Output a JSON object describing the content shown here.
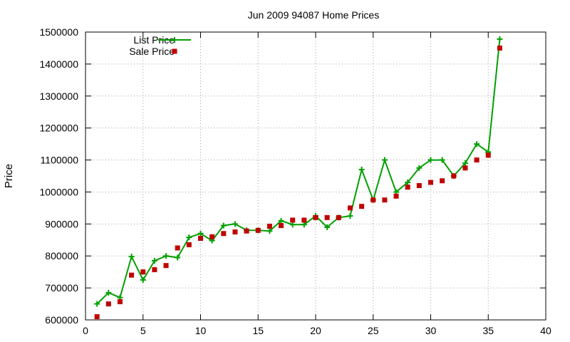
{
  "chart_data": {
    "type": "line",
    "title": "Jun 2009 94087 Home Prices",
    "xlabel": "",
    "ylabel": "Price",
    "xlim": [
      0,
      40
    ],
    "ylim": [
      600000,
      1500000
    ],
    "xticks": [
      0,
      5,
      10,
      15,
      20,
      25,
      30,
      35,
      40
    ],
    "yticks": [
      600000,
      700000,
      800000,
      900000,
      1000000,
      1100000,
      1200000,
      1300000,
      1400000,
      1500000
    ],
    "grid": true,
    "legend_position": "top-left",
    "series": [
      {
        "name": "List Price",
        "style": "line-plus",
        "color": "#00a000",
        "points": [
          [
            1,
            650000
          ],
          [
            2,
            685000
          ],
          [
            3,
            670000
          ],
          [
            4,
            798000
          ],
          [
            5,
            725000
          ],
          [
            6,
            785000
          ],
          [
            7,
            800000
          ],
          [
            8,
            795000
          ],
          [
            9,
            858000
          ],
          [
            10,
            870000
          ],
          [
            11,
            848000
          ],
          [
            12,
            895000
          ],
          [
            13,
            900000
          ],
          [
            14,
            880000
          ],
          [
            15,
            880000
          ],
          [
            16,
            878000
          ],
          [
            17,
            910000
          ],
          [
            18,
            898000
          ],
          [
            19,
            898000
          ],
          [
            20,
            925000
          ],
          [
            21,
            890000
          ],
          [
            22,
            920000
          ],
          [
            23,
            925000
          ],
          [
            24,
            1070000
          ],
          [
            25,
            975000
          ],
          [
            26,
            1100000
          ],
          [
            27,
            1000000
          ],
          [
            28,
            1030000
          ],
          [
            29,
            1075000
          ],
          [
            30,
            1100000
          ],
          [
            31,
            1100000
          ],
          [
            32,
            1050000
          ],
          [
            33,
            1090000
          ],
          [
            34,
            1150000
          ],
          [
            35,
            1125000
          ],
          [
            36,
            1478000
          ]
        ]
      },
      {
        "name": "Sale Price",
        "style": "square-points",
        "color": "#c00000",
        "points": [
          [
            1,
            610000
          ],
          [
            2,
            650000
          ],
          [
            3,
            657000
          ],
          [
            4,
            740000
          ],
          [
            5,
            750000
          ],
          [
            6,
            757000
          ],
          [
            7,
            770000
          ],
          [
            8,
            825000
          ],
          [
            9,
            835000
          ],
          [
            10,
            855000
          ],
          [
            11,
            860000
          ],
          [
            12,
            870000
          ],
          [
            13,
            875000
          ],
          [
            14,
            878000
          ],
          [
            15,
            880000
          ],
          [
            16,
            893000
          ],
          [
            17,
            895000
          ],
          [
            18,
            912000
          ],
          [
            19,
            912000
          ],
          [
            20,
            920000
          ],
          [
            21,
            920000
          ],
          [
            22,
            920000
          ],
          [
            23,
            950000
          ],
          [
            24,
            955000
          ],
          [
            25,
            975000
          ],
          [
            26,
            975000
          ],
          [
            27,
            987000
          ],
          [
            28,
            1015000
          ],
          [
            29,
            1020000
          ],
          [
            30,
            1030000
          ],
          [
            31,
            1035000
          ],
          [
            32,
            1050000
          ],
          [
            33,
            1075000
          ],
          [
            34,
            1100000
          ],
          [
            35,
            1115000
          ],
          [
            36,
            1450000
          ]
        ]
      }
    ]
  }
}
